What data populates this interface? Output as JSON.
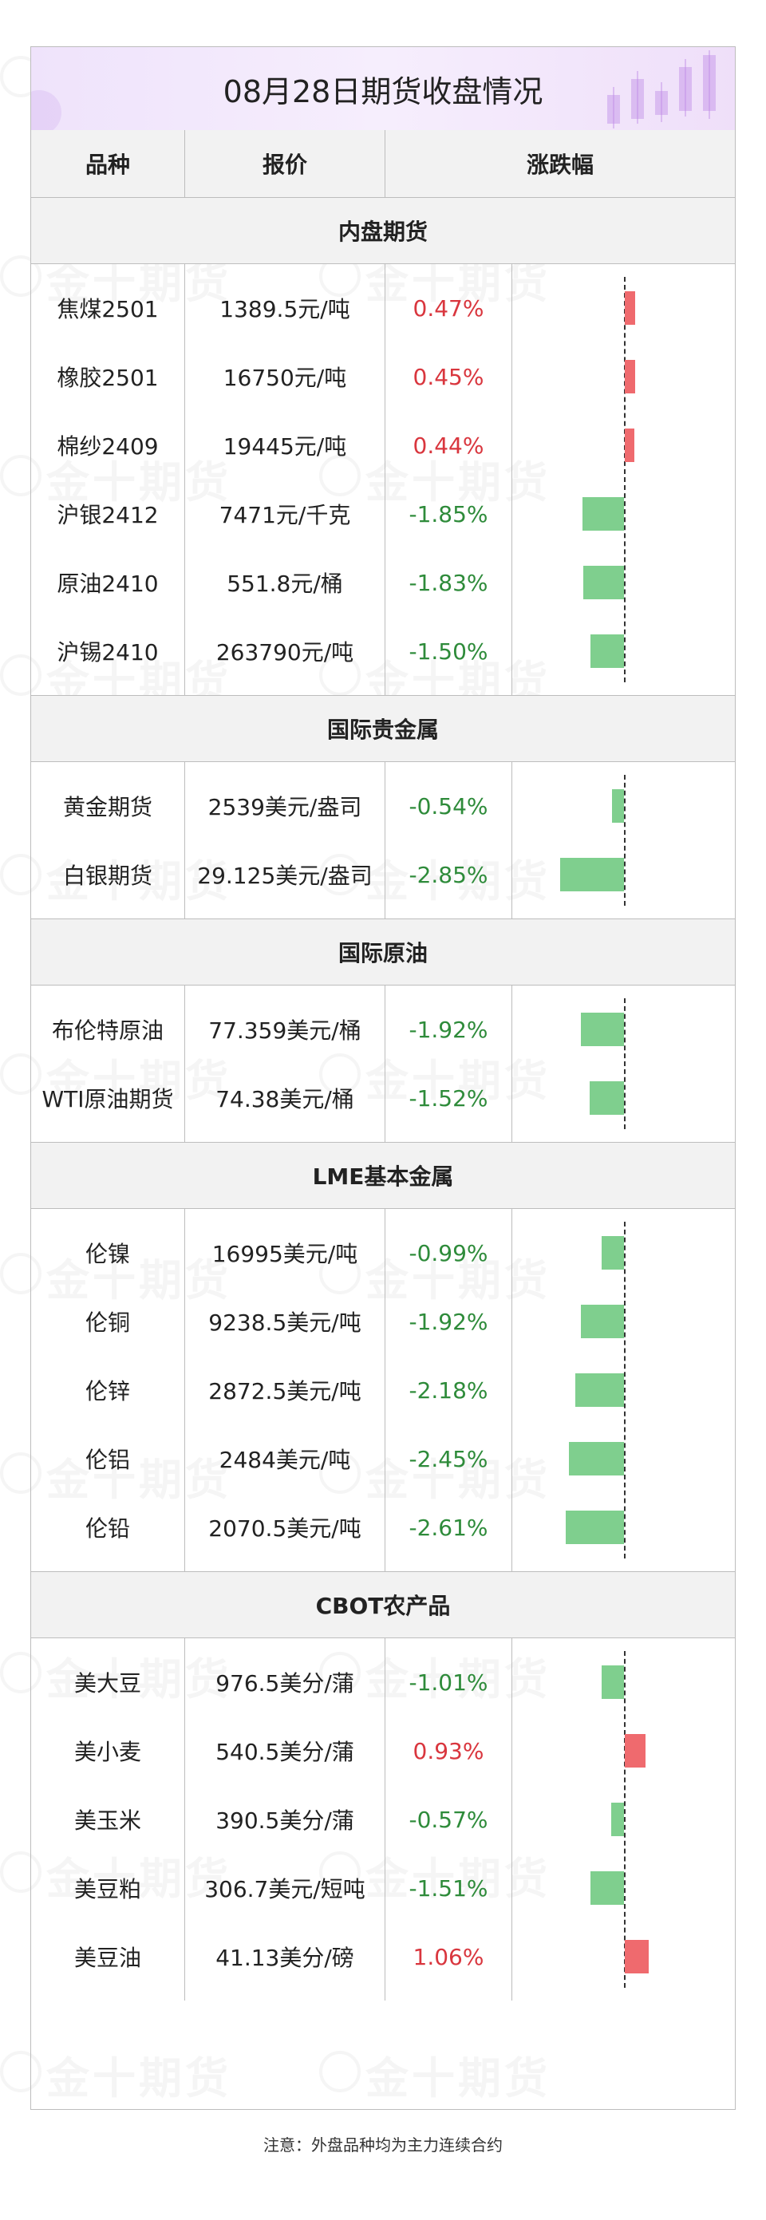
{
  "title": "08月28日期货收盘情况",
  "watermark": "金十期货",
  "columns": [
    "品种",
    "报价",
    "涨跌幅"
  ],
  "colors": {
    "up": "#d9363e",
    "down": "#2e8b3a",
    "bar_up": "#ef6a6e",
    "bar_down": "#7fcf8e",
    "title_bg": "#efe3fb"
  },
  "sections": [
    {
      "name": "内盘期货",
      "rows": [
        {
          "name": "焦煤2501",
          "price": "1389.5元/吨",
          "change": "0.47%",
          "value": 0.47
        },
        {
          "name": "橡胶2501",
          "price": "16750元/吨",
          "change": "0.45%",
          "value": 0.45
        },
        {
          "name": "棉纱2409",
          "price": "19445元/吨",
          "change": "0.44%",
          "value": 0.44
        },
        {
          "name": "沪银2412",
          "price": "7471元/千克",
          "change": "-1.85%",
          "value": -1.85
        },
        {
          "name": "原油2410",
          "price": "551.8元/桶",
          "change": "-1.83%",
          "value": -1.83
        },
        {
          "name": "沪锡2410",
          "price": "263790元/吨",
          "change": "-1.50%",
          "value": -1.5
        }
      ]
    },
    {
      "name": "国际贵金属",
      "rows": [
        {
          "name": "黄金期货",
          "price": "2539美元/盎司",
          "change": "-0.54%",
          "value": -0.54
        },
        {
          "name": "白银期货",
          "price": "29.125美元/盎司",
          "change": "-2.85%",
          "value": -2.85
        }
      ]
    },
    {
      "name": "国际原油",
      "rows": [
        {
          "name": "布伦特原油",
          "price": "77.359美元/桶",
          "change": "-1.92%",
          "value": -1.92
        },
        {
          "name": "WTI原油期货",
          "price": "74.38美元/桶",
          "change": "-1.52%",
          "value": -1.52
        }
      ]
    },
    {
      "name": "LME基本金属",
      "rows": [
        {
          "name": "伦镍",
          "price": "16995美元/吨",
          "change": "-0.99%",
          "value": -0.99
        },
        {
          "name": "伦铜",
          "price": "9238.5美元/吨",
          "change": "-1.92%",
          "value": -1.92
        },
        {
          "name": "伦锌",
          "price": "2872.5美元/吨",
          "change": "-2.18%",
          "value": -2.18
        },
        {
          "name": "伦铝",
          "price": "2484美元/吨",
          "change": "-2.45%",
          "value": -2.45
        },
        {
          "name": "伦铅",
          "price": "2070.5美元/吨",
          "change": "-2.61%",
          "value": -2.61
        }
      ]
    },
    {
      "name": "CBOT农产品",
      "rows": [
        {
          "name": "美大豆",
          "price": "976.5美分/蒲",
          "change": "-1.01%",
          "value": -1.01
        },
        {
          "name": "美小麦",
          "price": "540.5美分/蒲",
          "change": "0.93%",
          "value": 0.93
        },
        {
          "name": "美玉米",
          "price": "390.5美分/蒲",
          "change": "-0.57%",
          "value": -0.57
        },
        {
          "name": "美豆粕",
          "price": "306.7美元/短吨",
          "change": "-1.51%",
          "value": -1.51
        },
        {
          "name": "美豆油",
          "price": "41.13美分/磅",
          "change": "1.06%",
          "value": 1.06
        }
      ]
    }
  ],
  "footnote": "注意：外盘品种均为主力连续合约",
  "chart_data": {
    "type": "bar",
    "title": "08月28日期货收盘情况",
    "xlabel": "",
    "ylabel": "",
    "categories": [
      "焦煤2501",
      "橡胶2501",
      "棉纱2409",
      "沪银2412",
      "原油2410",
      "沪锡2410",
      "黄金期货",
      "白银期货",
      "布伦特原油",
      "WTI原油期货",
      "伦镍",
      "伦铜",
      "伦锌",
      "伦铝",
      "伦铅",
      "美大豆",
      "美小麦",
      "美玉米",
      "美豆粕",
      "美豆油"
    ],
    "values": [
      0.47,
      0.45,
      0.44,
      -1.85,
      -1.83,
      -1.5,
      -0.54,
      -2.85,
      -1.92,
      -1.52,
      -0.99,
      -1.92,
      -2.18,
      -2.45,
      -2.61,
      -1.01,
      0.93,
      -0.57,
      -1.51,
      1.06
    ],
    "orientation": "horizontal",
    "grid": false
  }
}
